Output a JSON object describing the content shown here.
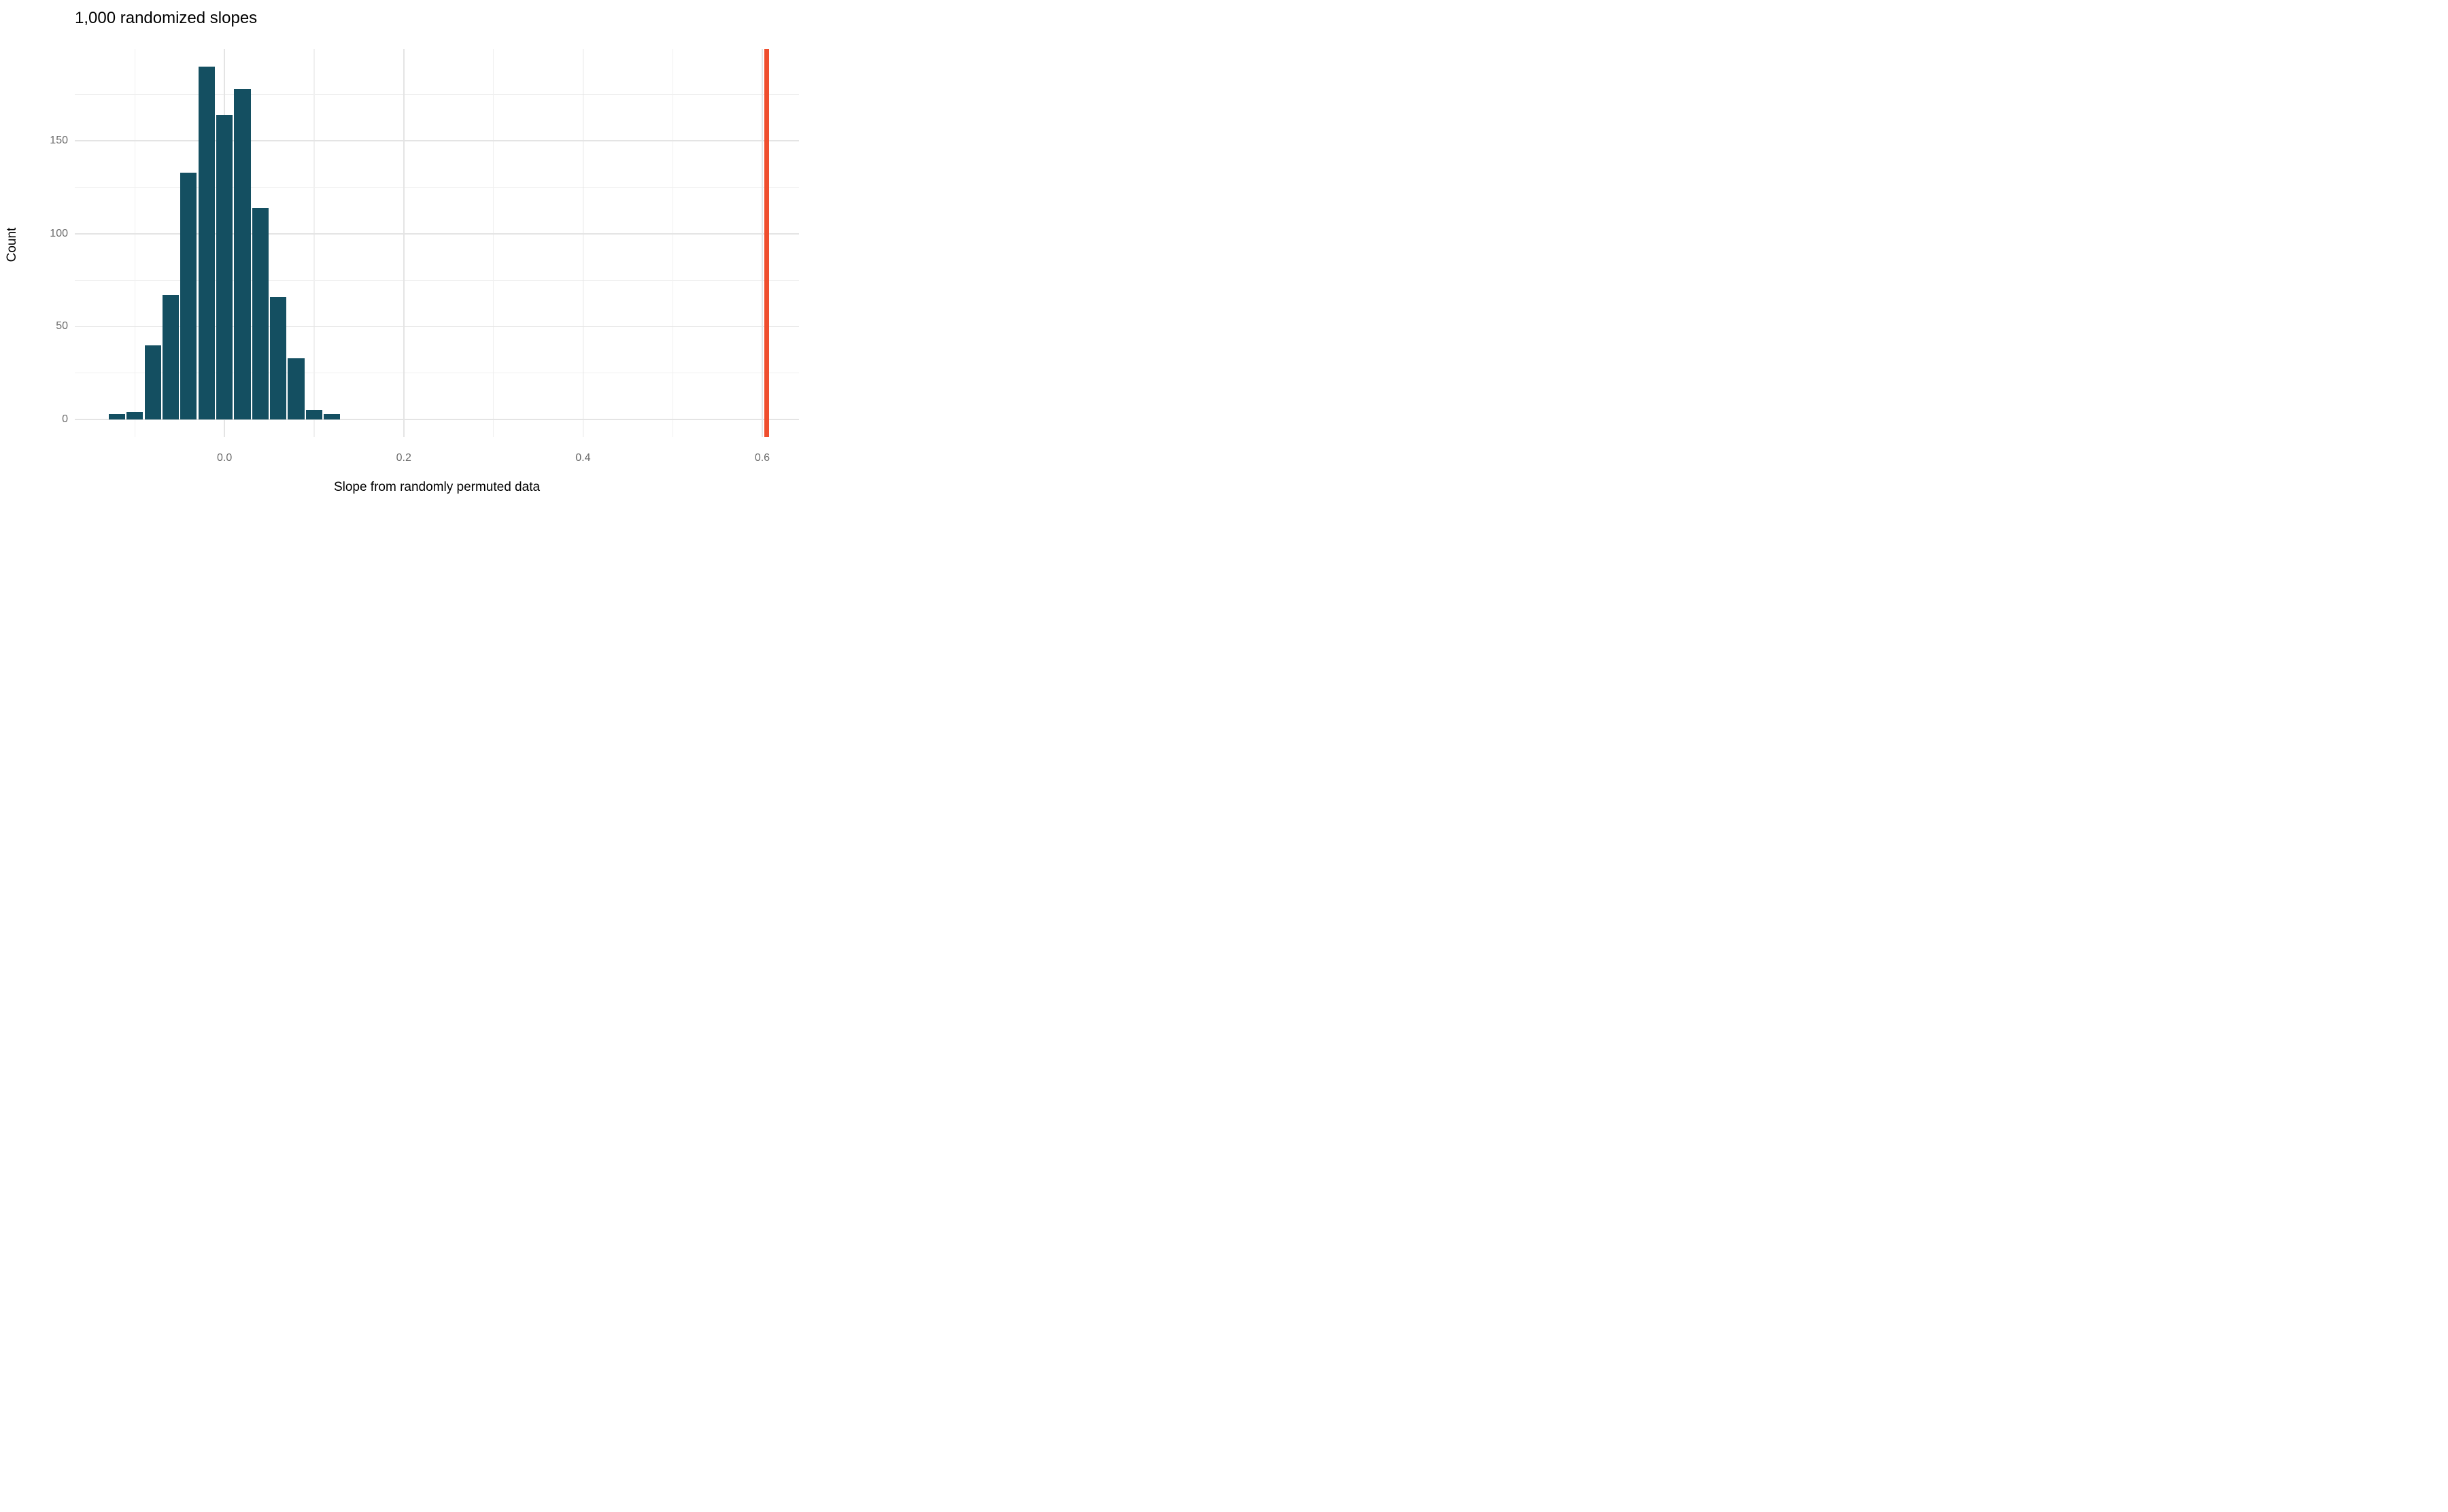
{
  "chart_data": {
    "type": "bar",
    "subtype": "histogram",
    "title": "1,000 randomized slopes",
    "xlabel": "Slope from randomly permuted data",
    "ylabel": "Count",
    "n_total": 1000,
    "bin_width": 0.02,
    "bin_centers": [
      -0.12,
      -0.1,
      -0.08,
      -0.06,
      -0.04,
      -0.02,
      0.0,
      0.02,
      0.04,
      0.06,
      0.08,
      0.1,
      0.12
    ],
    "counts": [
      3,
      4,
      40,
      67,
      133,
      190,
      164,
      178,
      114,
      66,
      33,
      5,
      3
    ],
    "observed_slope_vline": 0.605,
    "xlim": [
      -0.167,
      0.641
    ],
    "ylim": [
      -9.5,
      199.5
    ],
    "x_ticks": {
      "values": [
        0.0,
        0.2,
        0.4,
        0.6
      ],
      "labels": [
        "0.0",
        "0.2",
        "0.4",
        "0.6"
      ],
      "minor": [
        -0.1,
        0.1,
        0.3,
        0.5
      ]
    },
    "y_ticks": {
      "values": [
        0,
        50,
        100,
        150
      ],
      "labels": [
        "0",
        "50",
        "100",
        "150"
      ],
      "minor": [
        25,
        75,
        125,
        175
      ]
    },
    "grid": "major+minor, no axis lines, no tick marks",
    "legend": "none",
    "colors": {
      "bar_fill": "#144f61",
      "vline": "#ef4e2e",
      "grid_major": "#e4e4e4",
      "grid_minor": "#f0f0f0",
      "tick_text": "#6b6b6b",
      "title_text": "#000000",
      "background": "#ffffff"
    }
  }
}
